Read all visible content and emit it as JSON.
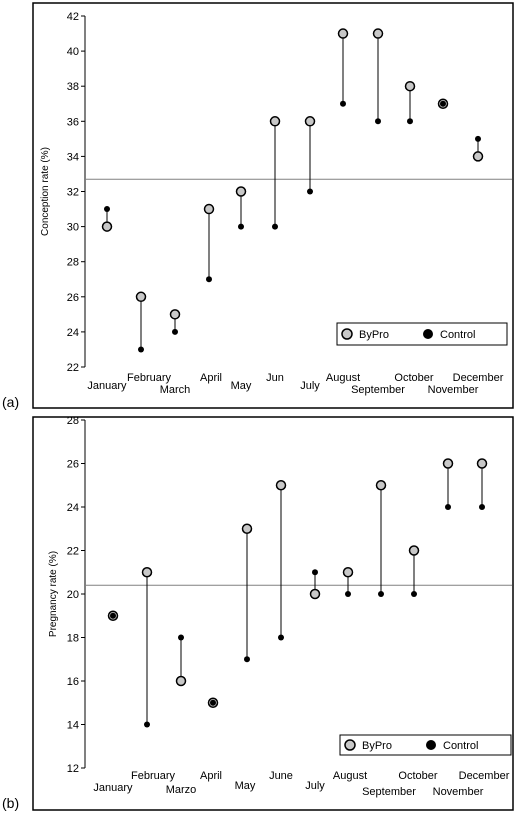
{
  "colors": {
    "byproMarker": "#c8c8c8",
    "controlMarker": "#000000",
    "refLine": "#808080",
    "frame": "#000000"
  },
  "chart_data": [
    {
      "type": "scatter",
      "panel_label": "(a)",
      "ylabel": "Conception rate (%)",
      "ylim": [
        22,
        42
      ],
      "yticks": [
        22,
        24,
        26,
        28,
        30,
        32,
        34,
        36,
        38,
        40,
        42
      ],
      "categories": [
        "January",
        "February",
        "March",
        "April",
        "May",
        "Jun",
        "July",
        "August",
        "September",
        "October",
        "November",
        "December"
      ],
      "reference_line": 32.7,
      "series": [
        {
          "name": "ByPro",
          "values": [
            30,
            26,
            25,
            31,
            32,
            36,
            36,
            41,
            41,
            38,
            37,
            34
          ]
        },
        {
          "name": "Control",
          "values": [
            31,
            23,
            24,
            27,
            30,
            30,
            32,
            37,
            36,
            36,
            37,
            35
          ]
        }
      ],
      "legend": "bottom-right",
      "grid": false
    },
    {
      "type": "scatter",
      "panel_label": "(b)",
      "ylabel": "Pregnancy rate (%)",
      "ylim": [
        12,
        28
      ],
      "yticks": [
        12,
        14,
        16,
        18,
        20,
        22,
        24,
        26,
        28
      ],
      "categories": [
        "January",
        "February",
        "Marzo",
        "April",
        "May",
        "June",
        "July",
        "August",
        "September",
        "October",
        "November",
        "December"
      ],
      "reference_line": 20.4,
      "series": [
        {
          "name": "ByPro",
          "values": [
            19,
            21,
            16,
            15,
            23,
            25,
            20,
            21,
            25,
            22,
            26,
            26
          ]
        },
        {
          "name": "Control",
          "values": [
            19,
            14,
            18,
            15,
            17,
            18,
            21,
            20,
            20,
            20,
            24,
            24
          ]
        }
      ],
      "legend": "bottom-right",
      "grid": false
    }
  ]
}
